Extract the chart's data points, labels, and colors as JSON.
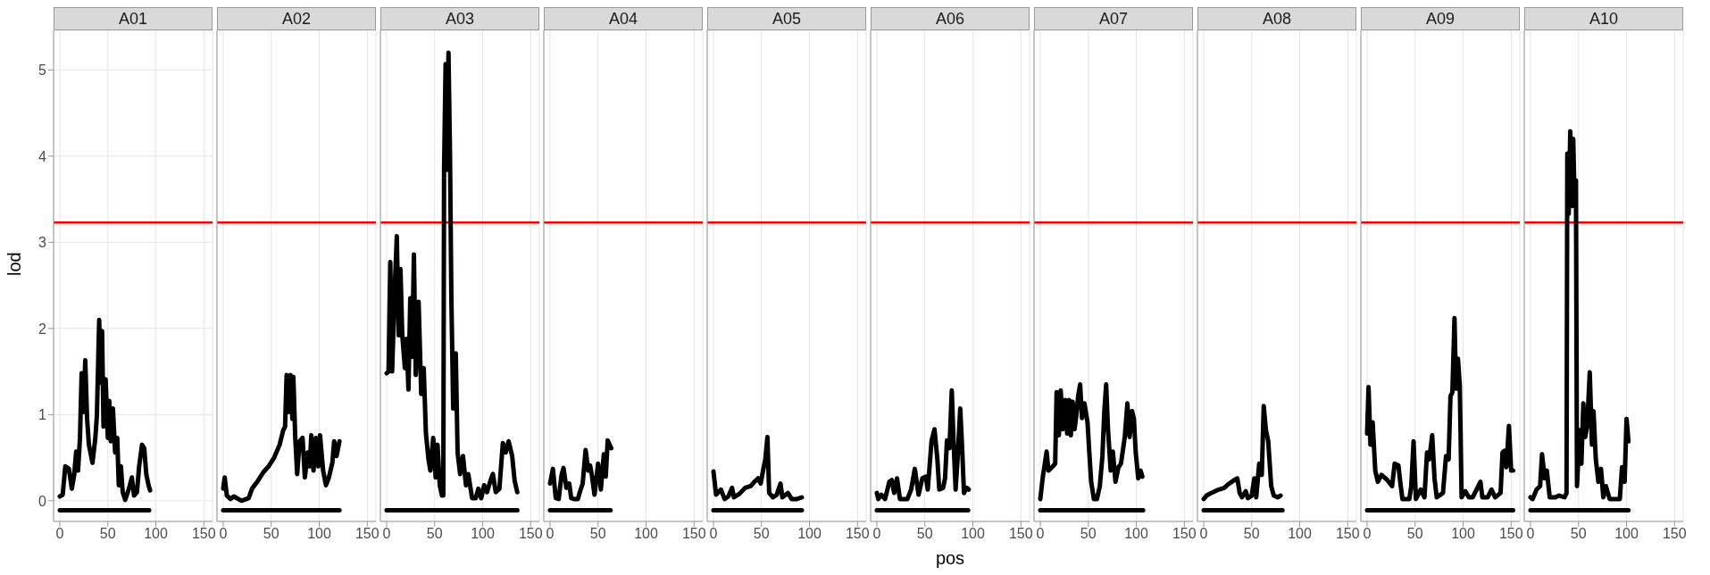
{
  "chart_data": [
    {
      "type": "line",
      "title": "A01",
      "ylabel": "lod",
      "xlim": [
        -6.5,
        159
      ],
      "xticks": [
        0,
        50,
        100,
        150
      ],
      "ylim": [
        -0.24,
        5.46
      ],
      "yticks": [
        0,
        1,
        2,
        3,
        4,
        5
      ],
      "grid": true,
      "ref_lines": [
        {
          "axis": "y",
          "value": 3.23,
          "color": "#ff0000"
        }
      ],
      "series": [
        {
          "color": "#000000",
          "x": [
            0,
            3,
            5.7,
            9.5,
            12.5,
            15,
            17,
            19,
            21,
            22.7,
            24.6,
            26.5,
            28.4,
            30.3,
            34,
            37,
            38.6,
            41,
            42.4,
            44,
            45.5,
            47.7,
            50,
            51.5,
            53,
            55.3,
            57.6,
            59.8,
            61.4,
            63.6,
            65.5,
            68,
            72,
            75,
            77.3,
            80.3,
            82.6,
            85.6,
            87.9,
            90,
            92.4,
            94
          ],
          "values": [
            0.05,
            0.07,
            0.4,
            0.37,
            0.14,
            0.3,
            0.57,
            0.35,
            0.73,
            1.48,
            1.03,
            1.63,
            0.95,
            0.65,
            0.44,
            0.73,
            0.99,
            2.1,
            1.37,
            1.97,
            0.86,
            1.41,
            0.73,
            1.16,
            0.69,
            1.07,
            0.56,
            0.73,
            0.18,
            0.4,
            0.1,
            0.01,
            0.14,
            0.27,
            0.06,
            0.1,
            0.4,
            0.65,
            0.61,
            0.31,
            0.18,
            0.12
          ]
        },
        {
          "color": "#000000",
          "x": [
            0,
            93
          ],
          "values": [
            -0.11,
            -0.11
          ]
        }
      ]
    },
    {
      "type": "line",
      "title": "A02",
      "tick_labels": "x",
      "xlim": [
        -6.5,
        159
      ],
      "xticks": [
        0,
        50,
        100,
        150
      ],
      "ylim": [
        -0.24,
        5.46
      ],
      "yticks": [
        0,
        1,
        2,
        3,
        4,
        5
      ],
      "grid": true,
      "ref_lines": [
        {
          "axis": "y",
          "value": 3.23,
          "color": "#ff0000"
        }
      ],
      "series": [
        {
          "color": "#000000",
          "x": [
            0,
            1.5,
            3.8,
            7.6,
            11,
            19,
            26.5,
            30,
            36,
            41.7,
            47.3,
            53,
            58.7,
            62.5,
            64.4,
            66,
            68,
            70,
            72,
            73,
            75,
            77,
            79.5,
            82.6,
            85,
            88,
            90,
            91.7,
            94,
            96.6,
            99,
            100.8,
            104,
            107,
            110,
            113.6,
            115.5,
            118,
            121
          ],
          "values": [
            0.14,
            0.27,
            0.06,
            0.02,
            0.05,
            0,
            0.03,
            0.14,
            0.23,
            0.33,
            0.4,
            0.5,
            0.65,
            0.82,
            0.86,
            1.46,
            1.03,
            1.46,
            0.95,
            1.44,
            0.73,
            0.31,
            0.69,
            0.73,
            0.27,
            0.56,
            0.4,
            0.76,
            0.35,
            0.73,
            0.4,
            0.76,
            0.35,
            0.18,
            0.27,
            0.44,
            0.69,
            0.52,
            0.69
          ]
        },
        {
          "color": "#000000",
          "x": [
            0,
            121
          ],
          "values": [
            -0.11,
            -0.11
          ]
        }
      ]
    },
    {
      "type": "line",
      "title": "A03",
      "tick_labels": "x",
      "xlim": [
        -6.5,
        159
      ],
      "xticks": [
        0,
        50,
        100,
        150
      ],
      "ylim": [
        -0.24,
        5.46
      ],
      "yticks": [
        0,
        1,
        2,
        3,
        4,
        5
      ],
      "grid": true,
      "ref_lines": [
        {
          "axis": "y",
          "value": 3.23,
          "color": "#ff0000"
        }
      ],
      "series": [
        {
          "color": "#000000",
          "x": [
            0,
            2,
            3.8,
            5.7,
            8.3,
            10.6,
            12.5,
            14.4,
            16.3,
            19,
            20.8,
            22.7,
            24.6,
            26.5,
            28.4,
            30.3,
            33.3,
            36,
            38.6,
            40.9,
            43.6,
            45.5,
            48.5,
            51,
            53,
            55.3,
            57.6,
            59,
            59.8,
            61.4,
            62.9,
            64.4,
            66,
            67.4,
            69.3,
            72,
            73.9,
            76.5,
            79.5,
            82.6,
            85,
            89,
            92.8,
            95.5,
            98.5,
            101.5,
            104.5,
            108,
            110.6,
            113.6,
            117.4,
            121,
            124,
            127,
            130.7,
            133.3,
            136
          ],
          "values": [
            1.48,
            1.5,
            2.77,
            1.5,
            2.43,
            3.07,
            1.92,
            2.69,
            1.92,
            1.54,
            1.88,
            1.29,
            2.35,
            1.67,
            2.86,
            1.46,
            2.31,
            1.24,
            1.54,
            0.78,
            0.48,
            0.35,
            0.73,
            0.27,
            0.65,
            0.18,
            0.06,
            0.06,
            3.84,
            5.07,
            3.84,
            5.2,
            4.0,
            2.35,
            1.07,
            1.71,
            0.56,
            0.31,
            0.52,
            0.18,
            0.31,
            0.03,
            0.03,
            0.14,
            0.03,
            0.18,
            0.1,
            0.23,
            0.31,
            0.1,
            0.14,
            0.67,
            0.56,
            0.69,
            0.52,
            0.23,
            0.1
          ]
        },
        {
          "color": "#000000",
          "x": [
            0,
            136
          ],
          "values": [
            -0.11,
            -0.11
          ]
        }
      ]
    },
    {
      "type": "line",
      "title": "A04",
      "tick_labels": "x",
      "xlim": [
        -6.5,
        159
      ],
      "xticks": [
        0,
        50,
        100,
        150
      ],
      "ylim": [
        -0.24,
        5.46
      ],
      "yticks": [
        0,
        1,
        2,
        3,
        4,
        5
      ],
      "grid": true,
      "ref_lines": [
        {
          "axis": "y",
          "value": 3.23,
          "color": "#ff0000"
        }
      ],
      "series": [
        {
          "color": "#000000",
          "x": [
            0,
            3,
            6,
            9,
            12,
            14,
            17,
            20,
            22,
            25,
            29,
            31,
            34,
            37,
            39.8,
            41.7,
            43.5,
            46.3,
            50,
            52.9,
            56,
            58,
            60,
            63.7
          ],
          "values": [
            0.2,
            0.37,
            0.03,
            0.02,
            0.3,
            0.38,
            0.15,
            0.2,
            0.03,
            0.02,
            0.02,
            0.1,
            0.2,
            0.59,
            0.35,
            0.41,
            0.3,
            0.07,
            0.43,
            0.13,
            0.54,
            0.28,
            0.7,
            0.61
          ]
        },
        {
          "color": "#000000",
          "x": [
            0,
            63
          ],
          "values": [
            -0.11,
            -0.11
          ]
        }
      ]
    },
    {
      "type": "line",
      "title": "A05",
      "tick_labels": "x",
      "xlim": [
        -6.5,
        159
      ],
      "xticks": [
        0,
        50,
        100,
        150
      ],
      "ylim": [
        -0.24,
        5.46
      ],
      "yticks": [
        0,
        1,
        2,
        3,
        4,
        5
      ],
      "grid": true,
      "ref_lines": [
        {
          "axis": "y",
          "value": 3.23,
          "color": "#ff0000"
        }
      ],
      "series": [
        {
          "color": "#000000",
          "x": [
            0,
            2.7,
            7.8,
            11.6,
            15.5,
            19.4,
            21.3,
            27,
            33,
            38.8,
            42.6,
            46.5,
            49.2,
            52.3,
            54,
            56.2,
            58,
            62,
            65.9,
            69.8,
            71.7,
            77.5,
            81.4,
            87,
            92
          ],
          "values": [
            0.34,
            0.07,
            0.13,
            0.02,
            0.05,
            0.15,
            0.04,
            0.08,
            0.15,
            0.17,
            0.22,
            0.26,
            0.2,
            0.39,
            0.48,
            0.74,
            0.09,
            0.04,
            0.07,
            0.2,
            0.04,
            0.09,
            0.02,
            0.02,
            0.04
          ]
        },
        {
          "color": "#000000",
          "x": [
            0,
            92
          ],
          "values": [
            -0.11,
            -0.11
          ]
        }
      ]
    },
    {
      "type": "line",
      "title": "A06",
      "xlabel": "pos",
      "tick_labels": "x",
      "xlim": [
        -6.5,
        159
      ],
      "xticks": [
        0,
        50,
        100,
        150
      ],
      "ylim": [
        -0.24,
        5.46
      ],
      "yticks": [
        0,
        1,
        2,
        3,
        4,
        5
      ],
      "grid": true,
      "ref_lines": [
        {
          "axis": "y",
          "value": 3.23,
          "color": "#ff0000"
        }
      ],
      "series": [
        {
          "color": "#000000",
          "x": [
            0,
            1.5,
            4.7,
            8.5,
            13,
            15.5,
            18,
            21,
            24,
            31.8,
            35.7,
            39.5,
            43.4,
            47.3,
            51,
            53,
            57,
            60,
            63,
            65,
            69,
            71,
            73,
            75.6,
            78,
            80,
            82,
            84,
            86.8,
            88.8,
            90.7,
            93.8,
            95.7
          ],
          "values": [
            0.09,
            0.02,
            0.07,
            0.02,
            0.22,
            0.24,
            0.09,
            0.26,
            0.02,
            0.02,
            0.13,
            0.37,
            0.07,
            0.26,
            0.28,
            0.13,
            0.7,
            0.83,
            0.48,
            0.13,
            0.15,
            0.26,
            0.7,
            0.61,
            1.28,
            0.65,
            0.13,
            0.48,
            1.07,
            0.61,
            0.09,
            0.15,
            0.13
          ]
        },
        {
          "color": "#000000",
          "x": [
            0,
            95
          ],
          "values": [
            -0.11,
            -0.11
          ]
        }
      ]
    },
    {
      "type": "line",
      "title": "A07",
      "tick_labels": "x",
      "xlim": [
        -6.5,
        159
      ],
      "xticks": [
        0,
        50,
        100,
        150
      ],
      "ylim": [
        -0.24,
        5.46
      ],
      "yticks": [
        0,
        1,
        2,
        3,
        4,
        5
      ],
      "grid": true,
      "ref_lines": [
        {
          "axis": "y",
          "value": 3.23,
          "color": "#ff0000"
        }
      ],
      "series": [
        {
          "color": "#000000",
          "x": [
            0,
            2.7,
            6.6,
            8.5,
            12.4,
            15.5,
            17,
            19.4,
            21.3,
            23.3,
            26,
            28,
            30,
            31.8,
            33.7,
            35.7,
            37.6,
            39.5,
            41.5,
            43.4,
            46,
            49.2,
            51,
            53,
            55.8,
            59,
            62,
            64.7,
            66.7,
            68.6,
            70.5,
            73.3,
            75.6,
            78.3,
            81.4,
            84,
            88,
            90.7,
            93,
            95.6,
            97.5,
            99.4,
            102,
            104.4,
            106.3
          ],
          "values": [
            0.02,
            0.28,
            0.57,
            0.35,
            0.39,
            0.43,
            1.26,
            0.76,
            1.28,
            0.83,
            1.17,
            0.78,
            1.17,
            0.76,
            1.15,
            0.83,
            1.0,
            1.22,
            1.35,
            0.96,
            1.13,
            0.91,
            0.57,
            0.22,
            0.02,
            0.02,
            0.17,
            0.52,
            1.04,
            1.35,
            0.83,
            0.35,
            0.57,
            0.22,
            0.39,
            0.43,
            0.74,
            1.13,
            0.74,
            1.04,
            0.95,
            0.56,
            0.26,
            0.35,
            0.28
          ]
        },
        {
          "color": "#000000",
          "x": [
            0,
            107
          ],
          "values": [
            -0.11,
            -0.11
          ]
        }
      ]
    },
    {
      "type": "line",
      "title": "A08",
      "tick_labels": "x",
      "xlim": [
        -6.5,
        159
      ],
      "xticks": [
        0,
        50,
        100,
        150
      ],
      "ylim": [
        -0.24,
        5.46
      ],
      "yticks": [
        0,
        1,
        2,
        3,
        4,
        5
      ],
      "grid": true,
      "ref_lines": [
        {
          "axis": "y",
          "value": 3.23,
          "color": "#ff0000"
        }
      ],
      "series": [
        {
          "color": "#000000",
          "x": [
            0,
            3,
            7.8,
            15.6,
            21.5,
            25.4,
            29.3,
            32,
            35,
            37.5,
            39.8,
            43.8,
            46,
            50,
            52.7,
            54.7,
            57.8,
            60.5,
            62.5,
            64.8,
            67.2,
            70.3,
            73,
            77,
            80
          ],
          "values": [
            0.02,
            0.06,
            0.09,
            0.13,
            0.15,
            0.19,
            0.22,
            0.24,
            0.26,
            0.09,
            0.04,
            0.11,
            0.03,
            0.06,
            0.26,
            0.04,
            0.43,
            0.3,
            1.1,
            0.82,
            0.69,
            0.17,
            0.06,
            0.04,
            0.06
          ]
        },
        {
          "color": "#000000",
          "x": [
            0,
            82
          ],
          "values": [
            -0.11,
            -0.11
          ]
        }
      ]
    },
    {
      "type": "line",
      "title": "A09",
      "tick_labels": "x",
      "xlim": [
        -6.5,
        159
      ],
      "xticks": [
        0,
        50,
        100,
        150
      ],
      "ylim": [
        -0.24,
        5.46
      ],
      "yticks": [
        0,
        1,
        2,
        3,
        4,
        5
      ],
      "grid": true,
      "ref_lines": [
        {
          "axis": "y",
          "value": 3.23,
          "color": "#ff0000"
        }
      ],
      "series": [
        {
          "color": "#000000",
          "x": [
            0,
            1.5,
            3.5,
            5.8,
            8.5,
            11.2,
            15,
            21,
            26,
            28.7,
            32.6,
            34.5,
            36.8,
            44,
            46,
            48.4,
            50.8,
            55.8,
            59.7,
            62.4,
            64.7,
            67.8,
            70.2,
            72.5,
            79,
            82.2,
            84.9,
            86.8,
            88.8,
            91,
            92.6,
            94.6,
            96.5,
            98.4,
            102.3,
            106,
            110,
            114,
            118,
            120,
            125.6,
            129.5,
            133.3,
            139,
            141,
            143,
            145,
            147.7,
            150,
            152
          ],
          "values": [
            0.78,
            1.32,
            0.65,
            0.91,
            0.35,
            0.22,
            0.3,
            0.24,
            0.17,
            0.43,
            0.41,
            0.22,
            0.02,
            0.02,
            0.17,
            0.69,
            0.02,
            0.13,
            0.04,
            0.56,
            0.48,
            0.76,
            0.26,
            0.04,
            0.09,
            0.52,
            0.48,
            1.21,
            1.26,
            2.12,
            1.3,
            1.65,
            1.34,
            0.04,
            0.11,
            0.04,
            0.04,
            0.13,
            0.22,
            0.04,
            0.04,
            0.13,
            0.04,
            0.09,
            0.56,
            0.58,
            0.39,
            0.87,
            0.35,
            0.35
          ]
        },
        {
          "color": "#000000",
          "x": [
            0,
            152
          ],
          "values": [
            -0.11,
            -0.11
          ]
        }
      ]
    },
    {
      "type": "line",
      "title": "A10",
      "tick_labels": "x",
      "xlim": [
        -6.5,
        159
      ],
      "xticks": [
        0,
        50,
        100,
        150
      ],
      "ylim": [
        -0.24,
        5.46
      ],
      "yticks": [
        0,
        1,
        2,
        3,
        4,
        5
      ],
      "grid": true,
      "ref_lines": [
        {
          "axis": "y",
          "value": 3.23,
          "color": "#ff0000"
        }
      ],
      "series": [
        {
          "color": "#000000",
          "x": [
            0,
            2.3,
            6.3,
            10,
            12,
            14.8,
            17,
            20,
            25.8,
            29.7,
            35.5,
            37.5,
            38.3,
            39.8,
            41.4,
            43.4,
            44.5,
            46,
            47.3,
            48.4,
            51.2,
            53,
            55,
            57,
            59,
            61.7,
            64,
            65.6,
            68,
            70.7,
            73.4,
            75.8,
            78.5,
            82.4,
            88.3,
            93,
            95.3,
            98,
            100,
            102
          ],
          "values": [
            0.04,
            0.02,
            0.13,
            0.17,
            0.54,
            0.26,
            0.35,
            0.04,
            0.04,
            0.06,
            0.04,
            0.09,
            4.03,
            3.33,
            4.29,
            3.42,
            4.2,
            3.42,
            3.72,
            0.17,
            0.82,
            0.43,
            1.13,
            0.74,
            0.87,
            1.49,
            0.65,
            1.04,
            0.48,
            0.22,
            0.37,
            0.04,
            0.17,
            0.02,
            0.02,
            0.02,
            0.39,
            0.22,
            0.95,
            0.69
          ]
        },
        {
          "color": "#000000",
          "x": [
            0,
            102
          ],
          "values": [
            -0.11,
            -0.11
          ]
        }
      ]
    }
  ]
}
